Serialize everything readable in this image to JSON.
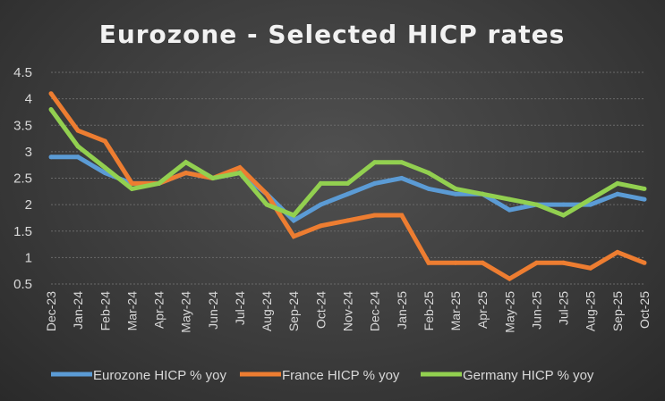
{
  "chart_data": {
    "type": "line",
    "title": "Eurozone - Selected HICP rates",
    "xlabel": "",
    "ylabel": "",
    "categories": [
      "Dec-23",
      "Jan-24",
      "Feb-24",
      "Mar-24",
      "Apr-24",
      "May-24",
      "Jun-24",
      "Jul-24",
      "Aug-24",
      "Sep-24",
      "Oct-24",
      "Nov-24",
      "Dec-24",
      "Jan-25",
      "Feb-25",
      "Mar-25",
      "Apr-25",
      "May-25",
      "Jun-25",
      "Jul-25",
      "Aug-25",
      "Sep-25",
      "Oct-25"
    ],
    "ylim": [
      0.5,
      4.5
    ],
    "yticks": [
      "0.5",
      "1",
      "1.5",
      "2",
      "2.5",
      "3",
      "3.5",
      "4",
      "4.5"
    ],
    "grid": true,
    "legend_position": "bottom",
    "series": [
      {
        "name": "Eurozone HICP % yoy",
        "color": "#5b9bd5",
        "values": [
          2.9,
          2.9,
          2.6,
          2.4,
          2.4,
          2.6,
          2.5,
          2.6,
          2.2,
          1.7,
          2.0,
          2.2,
          2.4,
          2.5,
          2.3,
          2.2,
          2.2,
          1.9,
          2.0,
          2.0,
          2.0,
          2.2,
          2.1
        ]
      },
      {
        "name": "France HICP % yoy",
        "color": "#ed7d31",
        "values": [
          4.1,
          3.4,
          3.2,
          2.4,
          2.4,
          2.6,
          2.5,
          2.7,
          2.2,
          1.4,
          1.6,
          1.7,
          1.8,
          1.8,
          0.9,
          0.9,
          0.9,
          0.6,
          0.9,
          0.9,
          0.8,
          1.1,
          0.9
        ]
      },
      {
        "name": "Germany HICP % yoy",
        "color": "#92d050",
        "values": [
          3.8,
          3.1,
          2.7,
          2.3,
          2.4,
          2.8,
          2.5,
          2.6,
          2.0,
          1.8,
          2.4,
          2.4,
          2.8,
          2.8,
          2.6,
          2.3,
          2.2,
          2.1,
          2.0,
          1.8,
          2.1,
          2.4,
          2.3
        ]
      }
    ]
  }
}
